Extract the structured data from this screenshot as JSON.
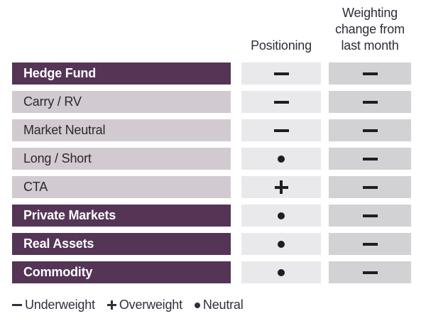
{
  "palette": {
    "dark_row_bg": "#543556",
    "light_row_bg": "#d1cad0",
    "positioning_cell_bg": "#e9e8ea",
    "weighting_cell_bg": "#d2d1d3",
    "symbol_color": "#1e1e20",
    "header_text": "#2c2f38",
    "dark_row_text": "#ffffff",
    "light_row_text": "#2b292d"
  },
  "table": {
    "columns": [
      {
        "label": "Positioning"
      },
      {
        "label": "Weighting\nchange from\nlast month"
      }
    ],
    "rows": [
      {
        "label": "Hedge Fund",
        "emphasis": true,
        "positioning": "underweight",
        "weighting_change": "underweight"
      },
      {
        "label": "Carry / RV",
        "emphasis": false,
        "positioning": "underweight",
        "weighting_change": "underweight"
      },
      {
        "label": "Market Neutral",
        "emphasis": false,
        "positioning": "underweight",
        "weighting_change": "underweight"
      },
      {
        "label": "Long / Short",
        "emphasis": false,
        "positioning": "neutral",
        "weighting_change": "underweight"
      },
      {
        "label": "CTA",
        "emphasis": false,
        "positioning": "overweight",
        "weighting_change": "underweight"
      },
      {
        "label": "Private Markets",
        "emphasis": true,
        "positioning": "neutral",
        "weighting_change": "underweight"
      },
      {
        "label": "Real Assets",
        "emphasis": true,
        "positioning": "neutral",
        "weighting_change": "underweight"
      },
      {
        "label": "Commodity",
        "emphasis": true,
        "positioning": "neutral",
        "weighting_change": "underweight"
      }
    ]
  },
  "legend": {
    "items": [
      {
        "sym": "underweight",
        "label": "Underweight"
      },
      {
        "sym": "overweight",
        "label": "Overweight"
      },
      {
        "sym": "neutral",
        "label": "Neutral"
      }
    ]
  },
  "chart_data": {
    "type": "table",
    "title": "",
    "columns": [
      "Positioning",
      "Weighting change from last month"
    ],
    "rows": [
      {
        "category": "Hedge Fund",
        "positioning": "Underweight",
        "weighting_change_from_last_month": "Underweight"
      },
      {
        "category": "Carry / RV",
        "positioning": "Underweight",
        "weighting_change_from_last_month": "Underweight"
      },
      {
        "category": "Market Neutral",
        "positioning": "Underweight",
        "weighting_change_from_last_month": "Underweight"
      },
      {
        "category": "Long / Short",
        "positioning": "Neutral",
        "weighting_change_from_last_month": "Underweight"
      },
      {
        "category": "CTA",
        "positioning": "Overweight",
        "weighting_change_from_last_month": "Underweight"
      },
      {
        "category": "Private Markets",
        "positioning": "Neutral",
        "weighting_change_from_last_month": "Underweight"
      },
      {
        "category": "Real Assets",
        "positioning": "Neutral",
        "weighting_change_from_last_month": "Underweight"
      },
      {
        "category": "Commodity",
        "positioning": "Neutral",
        "weighting_change_from_last_month": "Underweight"
      }
    ],
    "legend": [
      {
        "symbol": "minus",
        "meaning": "Underweight"
      },
      {
        "symbol": "plus",
        "meaning": "Overweight"
      },
      {
        "symbol": "bullet",
        "meaning": "Neutral"
      }
    ],
    "layout_hints": {
      "legend_position": "bottom-left",
      "grid": false
    }
  }
}
